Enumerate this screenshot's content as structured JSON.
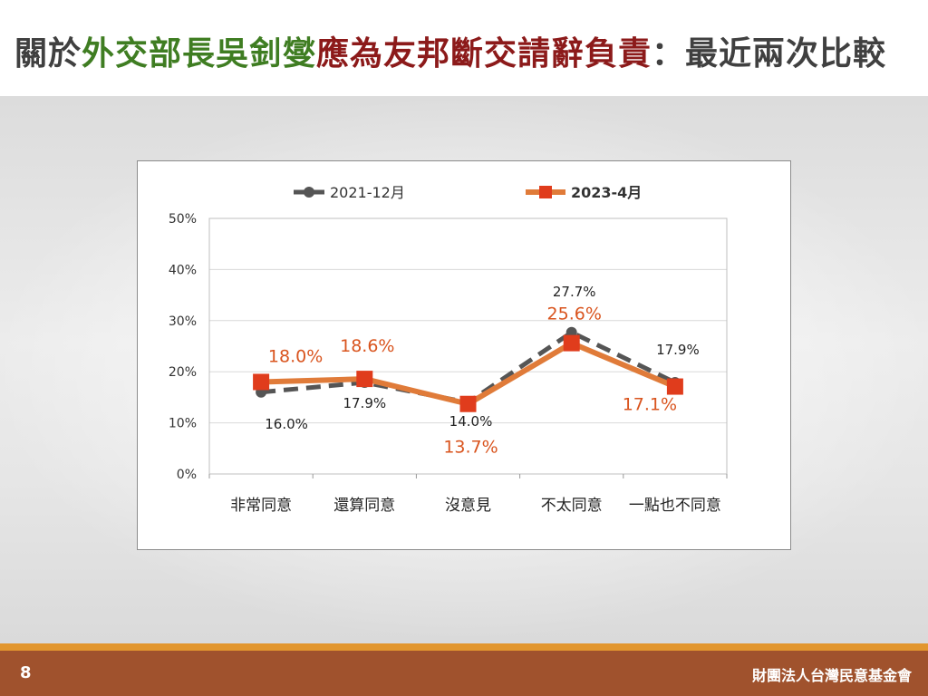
{
  "title": {
    "part1": "關於",
    "part2": "外交部長吳釗燮",
    "part3": "應為友邦斷交請辭負責",
    "part4": "：最近兩次比較",
    "colors": {
      "normal": "#404040",
      "green": "#3f7d22",
      "red": "#8c1a1a"
    }
  },
  "footer": {
    "page_number": "8",
    "organization": "財團法人台灣民意基金會"
  },
  "chart_data": {
    "type": "line",
    "categories": [
      "非常同意",
      "還算同意",
      "沒意見",
      "不太同意",
      "一點也不同意"
    ],
    "ylim": [
      0,
      50
    ],
    "yticks": [
      0,
      10,
      20,
      30,
      40,
      50
    ],
    "ytick_labels": [
      "0%",
      "10%",
      "20%",
      "30%",
      "40%",
      "50%"
    ],
    "grid": true,
    "legend_position": "top",
    "series": [
      {
        "name": "2021-12月",
        "values": [
          16.0,
          17.9,
          14.0,
          27.7,
          17.9
        ],
        "labels": [
          "16.0%",
          "17.9%",
          "14.0%",
          "27.7%",
          "17.9%"
        ],
        "color": "#555555",
        "style": "dashed",
        "marker": "circle"
      },
      {
        "name": "2023-4月",
        "values": [
          18.0,
          18.6,
          13.7,
          25.6,
          17.1
        ],
        "labels": [
          "18.0%",
          "18.6%",
          "13.7%",
          "25.6%",
          "17.1%"
        ],
        "color": "#e07b39",
        "marker_color": "#e03c1c",
        "label_color": "#d9541e",
        "style": "solid",
        "marker": "square"
      }
    ]
  }
}
